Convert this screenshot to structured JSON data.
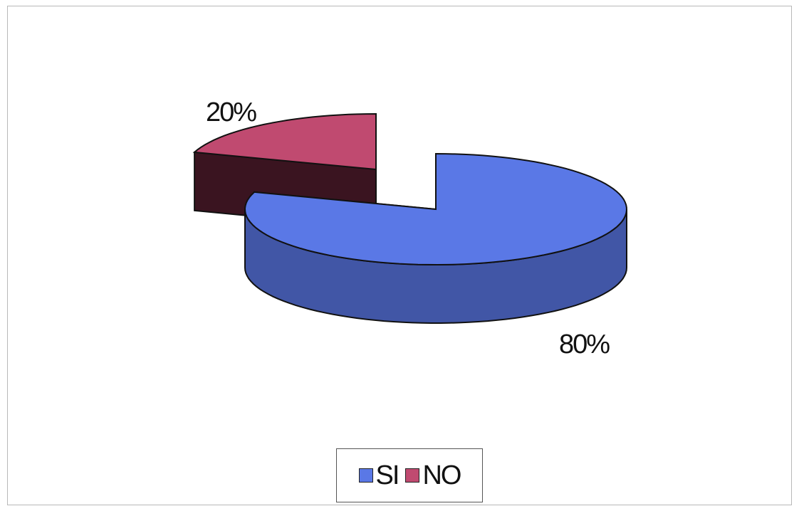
{
  "chart_data": {
    "type": "pie",
    "three_d": true,
    "exploded": true,
    "categories": [
      "SI",
      "NO"
    ],
    "values": [
      80,
      20
    ],
    "data_labels": [
      "80%",
      "20%"
    ],
    "colors": {
      "SI": "#5a78e6",
      "NO": "#c04a70"
    },
    "legend": {
      "position": "bottom",
      "entries": [
        "SI",
        "NO"
      ]
    }
  }
}
